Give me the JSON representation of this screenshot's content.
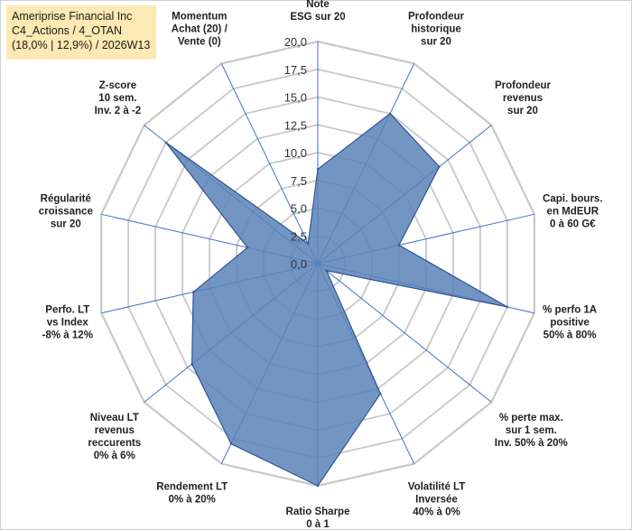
{
  "title_box": {
    "line1": "Ameriprise Financial Inc",
    "line2": "C4_Actions / 4_OTAN",
    "line3": "(18,0% | 12,9%) / 2026W13"
  },
  "colors": {
    "fill": "#5b82b7",
    "stroke": "#2f5597",
    "grid": "#c8c8c8",
    "spoke": "#4472c4",
    "title_bg": "#fde9b3"
  },
  "chart_data": {
    "type": "radar",
    "rmax": 20,
    "tick_step": 2.5,
    "tick_labels": [
      "0,0",
      "2,5",
      "5,0",
      "7,5",
      "10,0",
      "12,5",
      "15,0",
      "17,5",
      "20,0"
    ],
    "axes": [
      {
        "label": [
          "Note",
          "ESG sur 20"
        ],
        "value": 8.5
      },
      {
        "label": [
          "Profondeur",
          "historique",
          "sur 20"
        ],
        "value": 15.0
      },
      {
        "label": [
          "Profondeur",
          "revenus",
          "sur 20"
        ],
        "value": 14.0
      },
      {
        "label": [
          "Capi. bours.",
          "en MdEUR",
          "0 à 60 G€"
        ],
        "value": 7.5
      },
      {
        "label": [
          "% perfo 1A",
          "positive",
          "50% à 80%"
        ],
        "value": 17.5
      },
      {
        "label": [
          "% perte max.",
          "sur 1 sem.",
          "Inv. 50% à 20%"
        ],
        "value": 1.0
      },
      {
        "label": [
          "Volatilité LT",
          "Inversée",
          "40% à 0%"
        ],
        "value": 13.0
      },
      {
        "label": [
          "Ratio Sharpe",
          "0 à 1"
        ],
        "value": 20.0
      },
      {
        "label": [
          "Rendement LT",
          "0% à 20%"
        ],
        "value": 18.0
      },
      {
        "label": [
          "Niveau LT",
          "revenus",
          "reccurents",
          "0% à 6%"
        ],
        "value": 14.5
      },
      {
        "label": [
          "Perfo. LT",
          "vs Index",
          "-8% à 12%"
        ],
        "value": 11.5
      },
      {
        "label": [
          "Régularité",
          "croissance",
          "sur 20"
        ],
        "value": 6.5
      },
      {
        "label": [
          "Z-score",
          "10 sem.",
          "Inv. 2 à -2"
        ],
        "value": 17.5
      },
      {
        "label": [
          "Momentum",
          "Achat (20) /",
          "Vente (0)"
        ],
        "value": 2.0
      }
    ]
  }
}
